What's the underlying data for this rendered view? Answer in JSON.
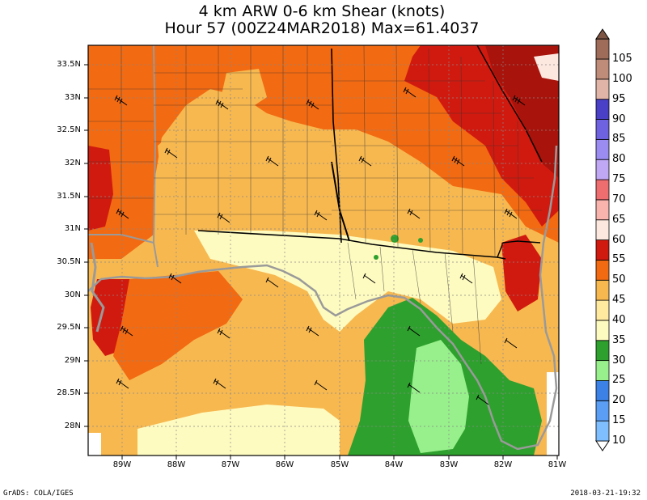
{
  "title": {
    "line1": "4 km ARW 0-6 km Shear (knots)",
    "line2": "Hour 57 (00Z24MAR2018) Max=61.4037"
  },
  "axes": {
    "lat_labels": [
      "33.5N",
      "33N",
      "32.5N",
      "32N",
      "31.5N",
      "31N",
      "30.5N",
      "30N",
      "29.5N",
      "29N",
      "28.5N",
      "28N"
    ],
    "lon_labels": [
      "89W",
      "88W",
      "87W",
      "86W",
      "85W",
      "84W",
      "83W",
      "82W",
      "81W"
    ]
  },
  "colorbar": {
    "levels": [
      "10",
      "15",
      "20",
      "25",
      "30",
      "35",
      "40",
      "45",
      "50",
      "55",
      "60",
      "65",
      "70",
      "75",
      "80",
      "85",
      "90",
      "95",
      "100",
      "105"
    ],
    "colors": [
      "#7fbfff",
      "#5a9ef5",
      "#3c82e6",
      "#98f08c",
      "#2ea02e",
      "#fefbc0",
      "#ffeaa0",
      "#f7b850",
      "#f26a12",
      "#d11a0f",
      "#fde8e0",
      "#fab4ae",
      "#ee6e70",
      "#c0a8f5",
      "#9a8cf0",
      "#6e62e0",
      "#4a40c8",
      "#e0b4a6",
      "#c08c7a",
      "#a06c5a",
      "#7e5443"
    ]
  },
  "footer": {
    "left": "GrADS: COLA/IGES",
    "right": "2018-03-21-19:32"
  }
}
